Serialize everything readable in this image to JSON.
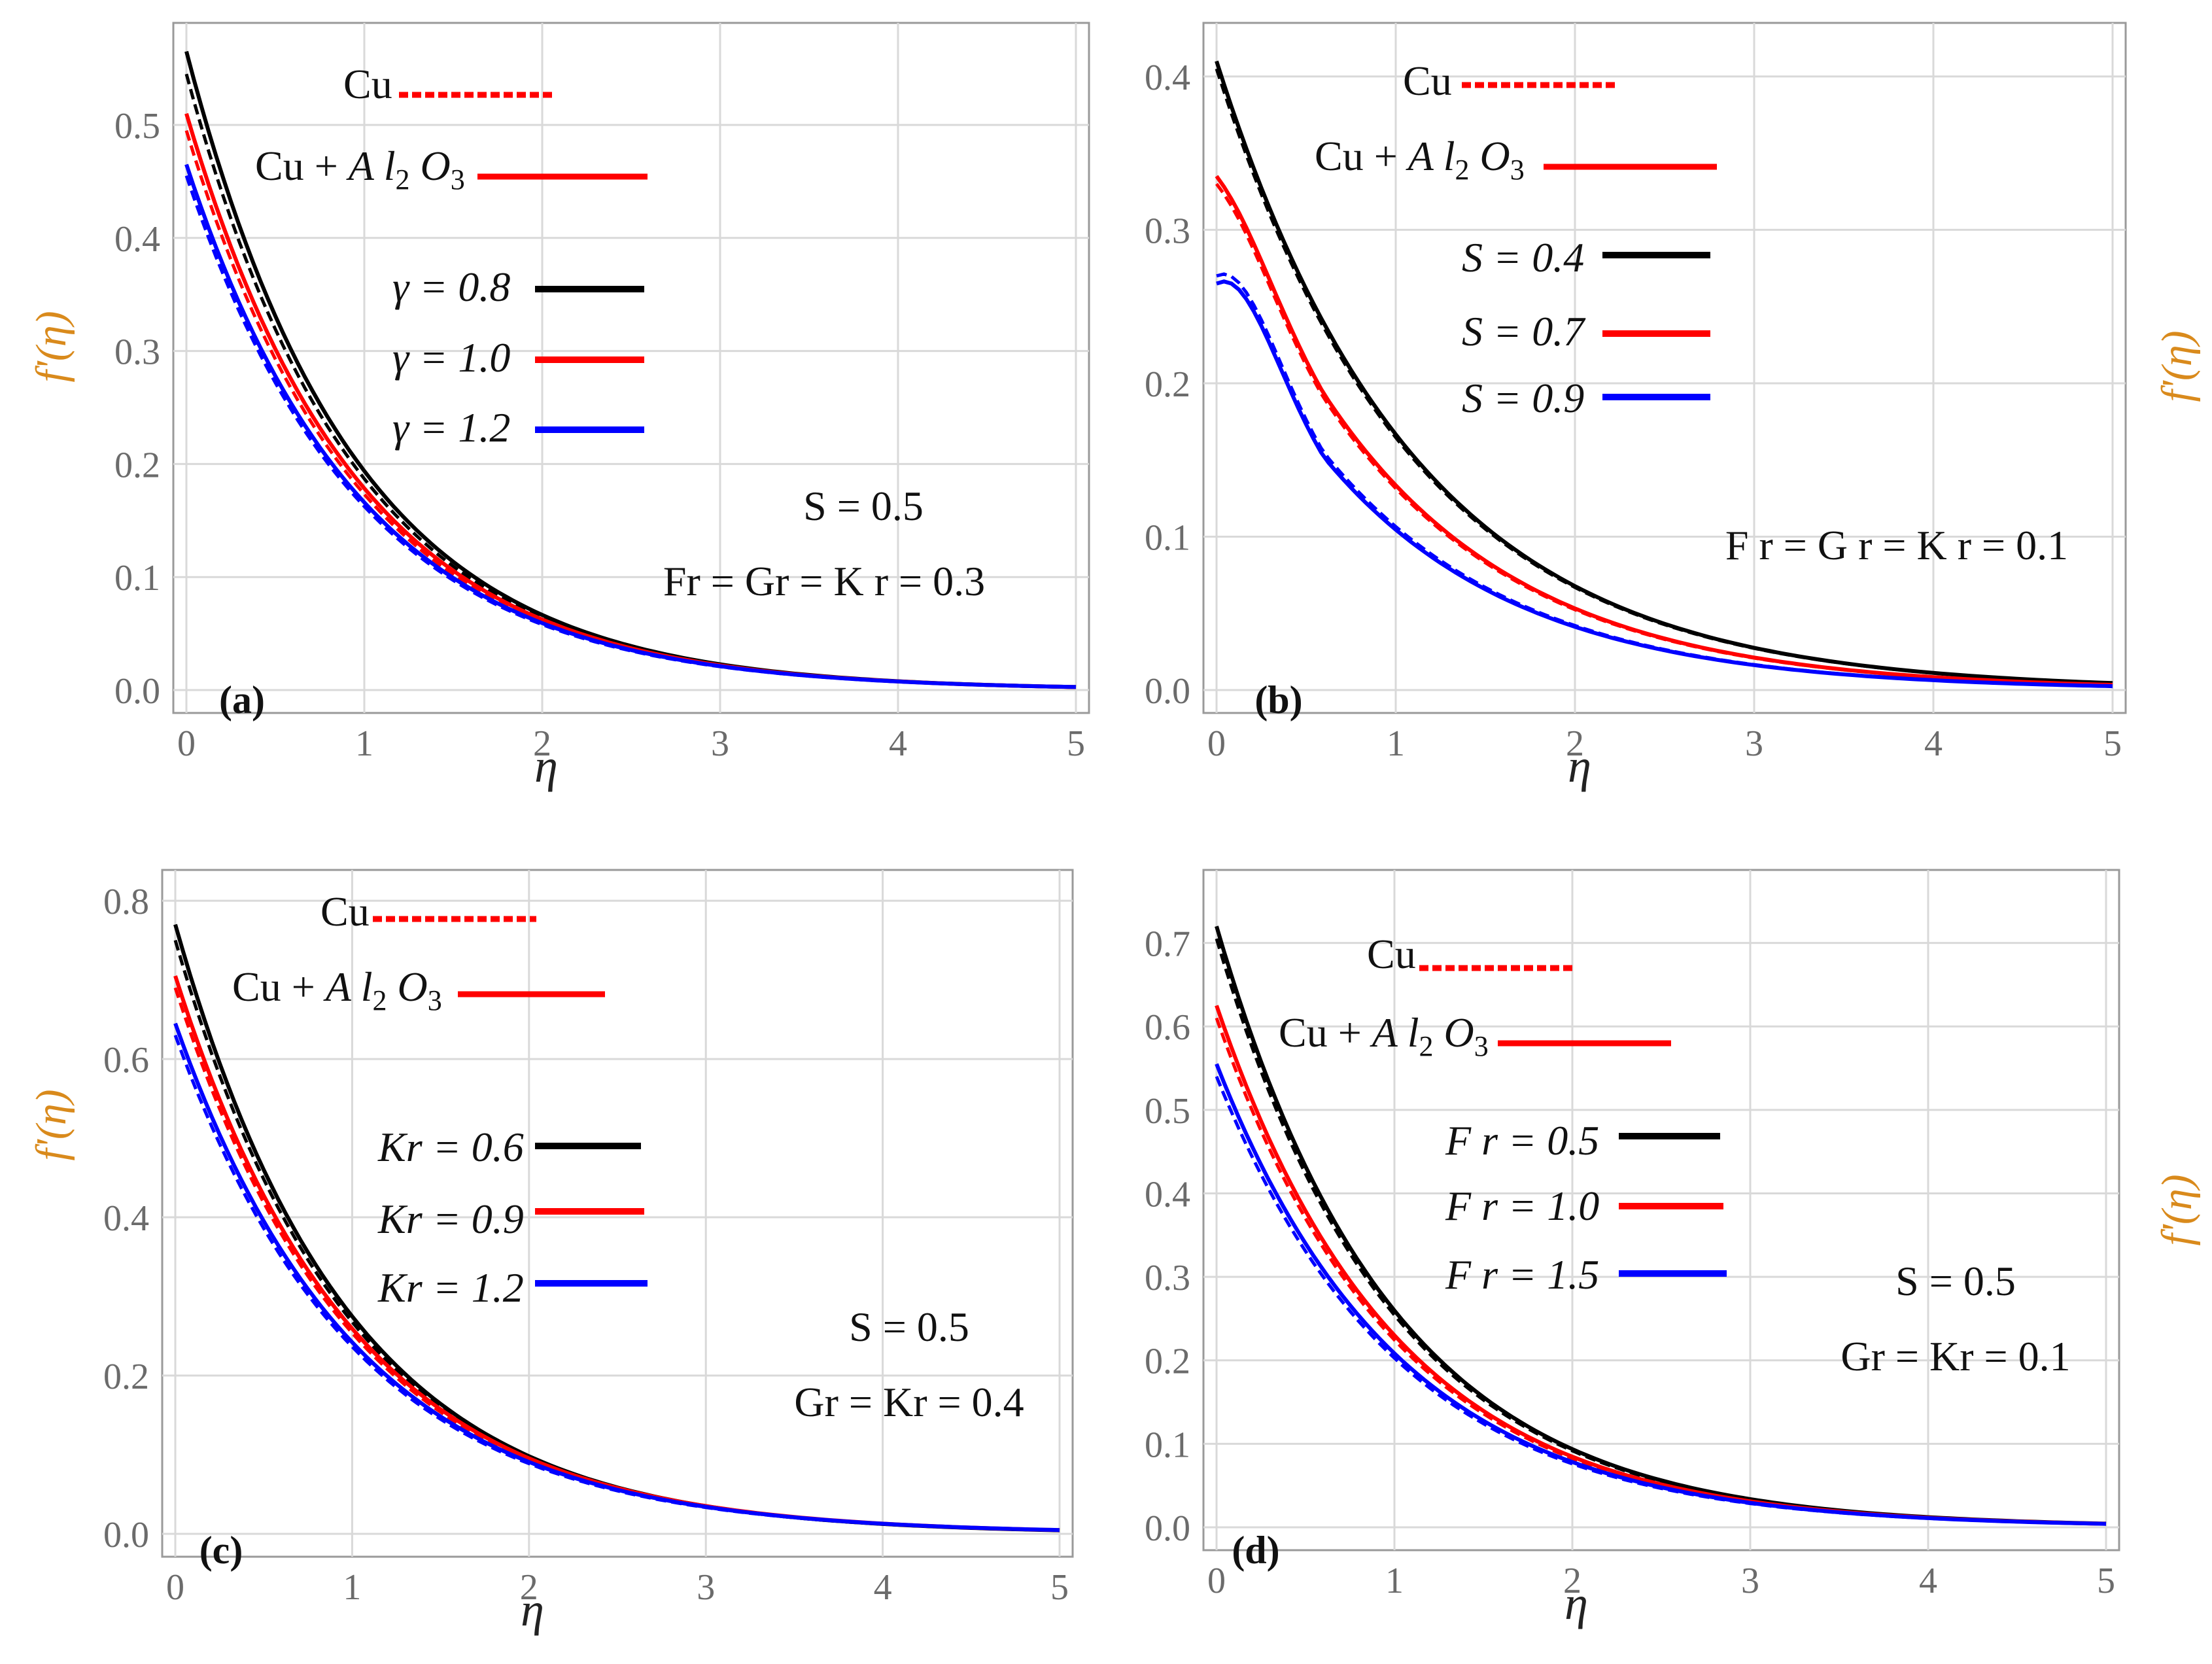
{
  "chart_data": [
    {
      "type": "line",
      "panel_label": "(a)",
      "xlabel": "η",
      "ylabel": "f'(η)",
      "xlim": [
        0,
        5
      ],
      "ylim": [
        0,
        0.57
      ],
      "x_ticks": [
        "0",
        "1",
        "2",
        "3",
        "4",
        "5"
      ],
      "y_ticks": [
        "0.0",
        "0.1",
        "0.2",
        "0.3",
        "0.4",
        "0.5"
      ],
      "y_tick_values": [
        0,
        0.1,
        0.2,
        0.3,
        0.4,
        0.5
      ],
      "legend_fluids": [
        {
          "label": "Cu",
          "style": "dashed"
        },
        {
          "label": "Cu + A l2 O3",
          "style": "solid"
        }
      ],
      "legend_params": [
        {
          "label": "γ = 0.8",
          "color": "#000000"
        },
        {
          "label": "γ = 1.0",
          "color": "#ff0000"
        },
        {
          "label": "γ = 1.2",
          "color": "#0000ff"
        }
      ],
      "annotations": [
        "S = 0.5",
        "Fr = Gr = K r = 0.3"
      ],
      "series": [
        {
          "name": "γ = 0.8 Cu + A l2 O3",
          "color": "#000000",
          "style": "solid",
          "f0": 0.565,
          "decay": 1.07
        },
        {
          "name": "γ = 0.8 Cu",
          "color": "#000000",
          "style": "dashed",
          "f0": 0.545,
          "decay": 1.07
        },
        {
          "name": "γ = 1.0 Cu + A l2 O3",
          "color": "#ff0000",
          "style": "solid",
          "f0": 0.51,
          "decay": 1.05
        },
        {
          "name": "γ = 1.0 Cu",
          "color": "#ff0000",
          "style": "dashed",
          "f0": 0.495,
          "decay": 1.05
        },
        {
          "name": "γ = 1.2 Cu + A l2 O3",
          "color": "#0000ff",
          "style": "solid",
          "f0": 0.465,
          "decay": 1.03
        },
        {
          "name": "γ = 1.2 Cu",
          "color": "#0000ff",
          "style": "dashed",
          "f0": 0.455,
          "decay": 1.03
        }
      ]
    },
    {
      "type": "line",
      "panel_label": "(b)",
      "xlabel": "η",
      "ylabel": "f'(η)",
      "xlim": [
        0,
        5
      ],
      "ylim": [
        0,
        0.42
      ],
      "x_ticks": [
        "0",
        "1",
        "2",
        "3",
        "4",
        "5"
      ],
      "y_ticks": [
        "0.0",
        "0.1",
        "0.2",
        "0.3",
        "0.4"
      ],
      "y_tick_values": [
        0,
        0.1,
        0.2,
        0.3,
        0.4
      ],
      "legend_fluids": [
        {
          "label": "Cu",
          "style": "dashed"
        },
        {
          "label": "Cu + A l2 O3",
          "style": "solid"
        }
      ],
      "legend_params": [
        {
          "label": "S = 0.4",
          "color": "#000000"
        },
        {
          "label": "S = 0.7",
          "color": "#ff0000"
        },
        {
          "label": "S = 0.9",
          "color": "#0000ff"
        }
      ],
      "annotations": [
        "F r = G r = K r = 0.1"
      ],
      "series": [
        {
          "name": "S = 0.4 Cu + A l2 O3",
          "color": "#000000",
          "style": "solid",
          "f0": 0.41,
          "hump": 0.0,
          "decay": 0.9
        },
        {
          "name": "S = 0.4 Cu",
          "color": "#000000",
          "style": "dashed",
          "f0": 0.405,
          "hump": 0.0,
          "decay": 0.9
        },
        {
          "name": "S = 0.7 Cu + A l2 O3",
          "color": "#ff0000",
          "style": "solid",
          "f0": 0.335,
          "hump": 0.02,
          "decay": 0.92
        },
        {
          "name": "S = 0.7 Cu",
          "color": "#ff0000",
          "style": "dashed",
          "f0": 0.33,
          "hump": 0.02,
          "decay": 0.92
        },
        {
          "name": "S = 0.9 Cu + A l2 O3",
          "color": "#0000ff",
          "style": "solid",
          "f0": 0.265,
          "hump": 0.04,
          "decay": 0.93
        },
        {
          "name": "S = 0.9 Cu",
          "color": "#0000ff",
          "style": "dashed",
          "f0": 0.27,
          "hump": 0.04,
          "decay": 0.93
        }
      ]
    },
    {
      "type": "line",
      "panel_label": "(c)",
      "xlabel": "η",
      "ylabel": "f'(η)",
      "xlim": [
        0,
        5
      ],
      "ylim": [
        0,
        0.81
      ],
      "x_ticks": [
        "0",
        "1",
        "2",
        "3",
        "4",
        "5"
      ],
      "y_ticks": [
        "0.0",
        "0.2",
        "0.4",
        "0.6",
        "0.8"
      ],
      "y_tick_values": [
        0,
        0.2,
        0.4,
        0.6,
        0.8
      ],
      "legend_fluids": [
        {
          "label": "Cu",
          "style": "dashed"
        },
        {
          "label": "Cu + A l2 O3",
          "style": "solid"
        }
      ],
      "legend_params": [
        {
          "label": "Kr = 0.6",
          "color": "#000000"
        },
        {
          "label": "Kr = 0.9",
          "color": "#ff0000"
        },
        {
          "label": "Kr = 1.2",
          "color": "#0000ff"
        }
      ],
      "annotations": [
        "S = 0.5",
        "Gr = Kr = 0.4"
      ],
      "series": [
        {
          "name": "Kr = 0.6 Cu + A l2 O3",
          "color": "#000000",
          "style": "solid",
          "f0": 0.77,
          "decay": 1.03
        },
        {
          "name": "Kr = 0.6 Cu",
          "color": "#000000",
          "style": "dashed",
          "f0": 0.75,
          "decay": 1.03
        },
        {
          "name": "Kr = 0.9 Cu + A l2 O3",
          "color": "#ff0000",
          "style": "solid",
          "f0": 0.705,
          "decay": 1.0
        },
        {
          "name": "Kr = 0.9 Cu",
          "color": "#ff0000",
          "style": "dashed",
          "f0": 0.69,
          "decay": 1.0
        },
        {
          "name": "Kr = 1.2 Cu + A l2 O3",
          "color": "#0000ff",
          "style": "solid",
          "f0": 0.645,
          "decay": 0.98
        },
        {
          "name": "Kr = 1.2 Cu",
          "color": "#0000ff",
          "style": "dashed",
          "f0": 0.63,
          "decay": 0.98
        }
      ]
    },
    {
      "type": "line",
      "panel_label": "(d)",
      "xlabel": "η",
      "ylabel": "f'(η)",
      "xlim": [
        0,
        5
      ],
      "ylim": [
        0,
        0.76
      ],
      "x_ticks": [
        "0",
        "1",
        "2",
        "3",
        "4",
        "5"
      ],
      "y_ticks": [
        "0.0",
        "0.1",
        "0.2",
        "0.3",
        "0.4",
        "0.5",
        "0.6",
        "0.7"
      ],
      "y_tick_values": [
        0,
        0.1,
        0.2,
        0.3,
        0.4,
        0.5,
        0.6,
        0.7
      ],
      "legend_fluids": [
        {
          "label": "Cu",
          "style": "dashed"
        },
        {
          "label": "Cu + A l2 O3",
          "style": "solid"
        }
      ],
      "legend_params": [
        {
          "label": "F r = 0.5",
          "color": "#000000"
        },
        {
          "label": "F r = 1.0",
          "color": "#ff0000"
        },
        {
          "label": "F r = 1.5",
          "color": "#0000ff"
        }
      ],
      "annotations": [
        "S = 0.5",
        "Gr = Kr = 0.1"
      ],
      "series": [
        {
          "name": "F r = 0.5 Cu + A l2 O3",
          "color": "#000000",
          "style": "solid",
          "f0": 0.72,
          "decay": 1.02
        },
        {
          "name": "F r = 0.5 Cu",
          "color": "#000000",
          "style": "dashed",
          "f0": 0.705,
          "decay": 1.02
        },
        {
          "name": "F r = 1.0 Cu + A l2 O3",
          "color": "#ff0000",
          "style": "solid",
          "f0": 0.625,
          "decay": 1.0
        },
        {
          "name": "F r = 1.0 Cu",
          "color": "#ff0000",
          "style": "dashed",
          "f0": 0.61,
          "decay": 1.0
        },
        {
          "name": "F r = 1.5 Cu + A l2 O3",
          "color": "#0000ff",
          "style": "solid",
          "f0": 0.555,
          "decay": 0.98
        },
        {
          "name": "F r = 1.5 Cu",
          "color": "#0000ff",
          "style": "dashed",
          "f0": 0.54,
          "decay": 0.98
        }
      ]
    }
  ]
}
